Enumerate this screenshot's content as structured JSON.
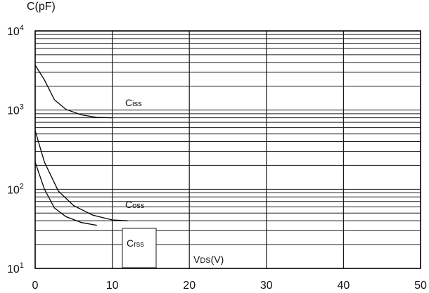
{
  "chart_data": {
    "type": "line",
    "title": "",
    "ylabel": "C(pF)",
    "xlabel": "VDS(V)",
    "y_scale": "log",
    "ylim": [
      10,
      10000
    ],
    "xlim": [
      0,
      50
    ],
    "grid": true,
    "x_ticks": [
      "0",
      "10",
      "20",
      "30",
      "40",
      "50"
    ],
    "y_ticks": [
      {
        "base": "10",
        "exp": "1"
      },
      {
        "base": "10",
        "exp": "2"
      },
      {
        "base": "10",
        "exp": "3"
      },
      {
        "base": "10",
        "exp": "4"
      }
    ],
    "series": [
      {
        "name": "Ciss",
        "label_main": "C",
        "label_sub": "iss",
        "x": [
          0,
          1.2,
          2.5,
          4.0,
          6.0,
          8.0,
          10.0
        ],
        "y": [
          3700,
          2400,
          1350,
          1020,
          870,
          810,
          800
        ]
      },
      {
        "name": "Coss",
        "label_main": "C",
        "label_sub": "oss",
        "x": [
          0,
          1.2,
          3.0,
          5.0,
          7.5,
          10.0,
          12.0
        ],
        "y": [
          550,
          220,
          95,
          62,
          47,
          41,
          40
        ]
      },
      {
        "name": "Crss",
        "label_main": "C",
        "label_sub": "rss",
        "x": [
          0,
          1.2,
          2.5,
          4.0,
          6.0,
          8.0
        ],
        "y": [
          220,
          100,
          58,
          45,
          38,
          35
        ]
      }
    ]
  }
}
